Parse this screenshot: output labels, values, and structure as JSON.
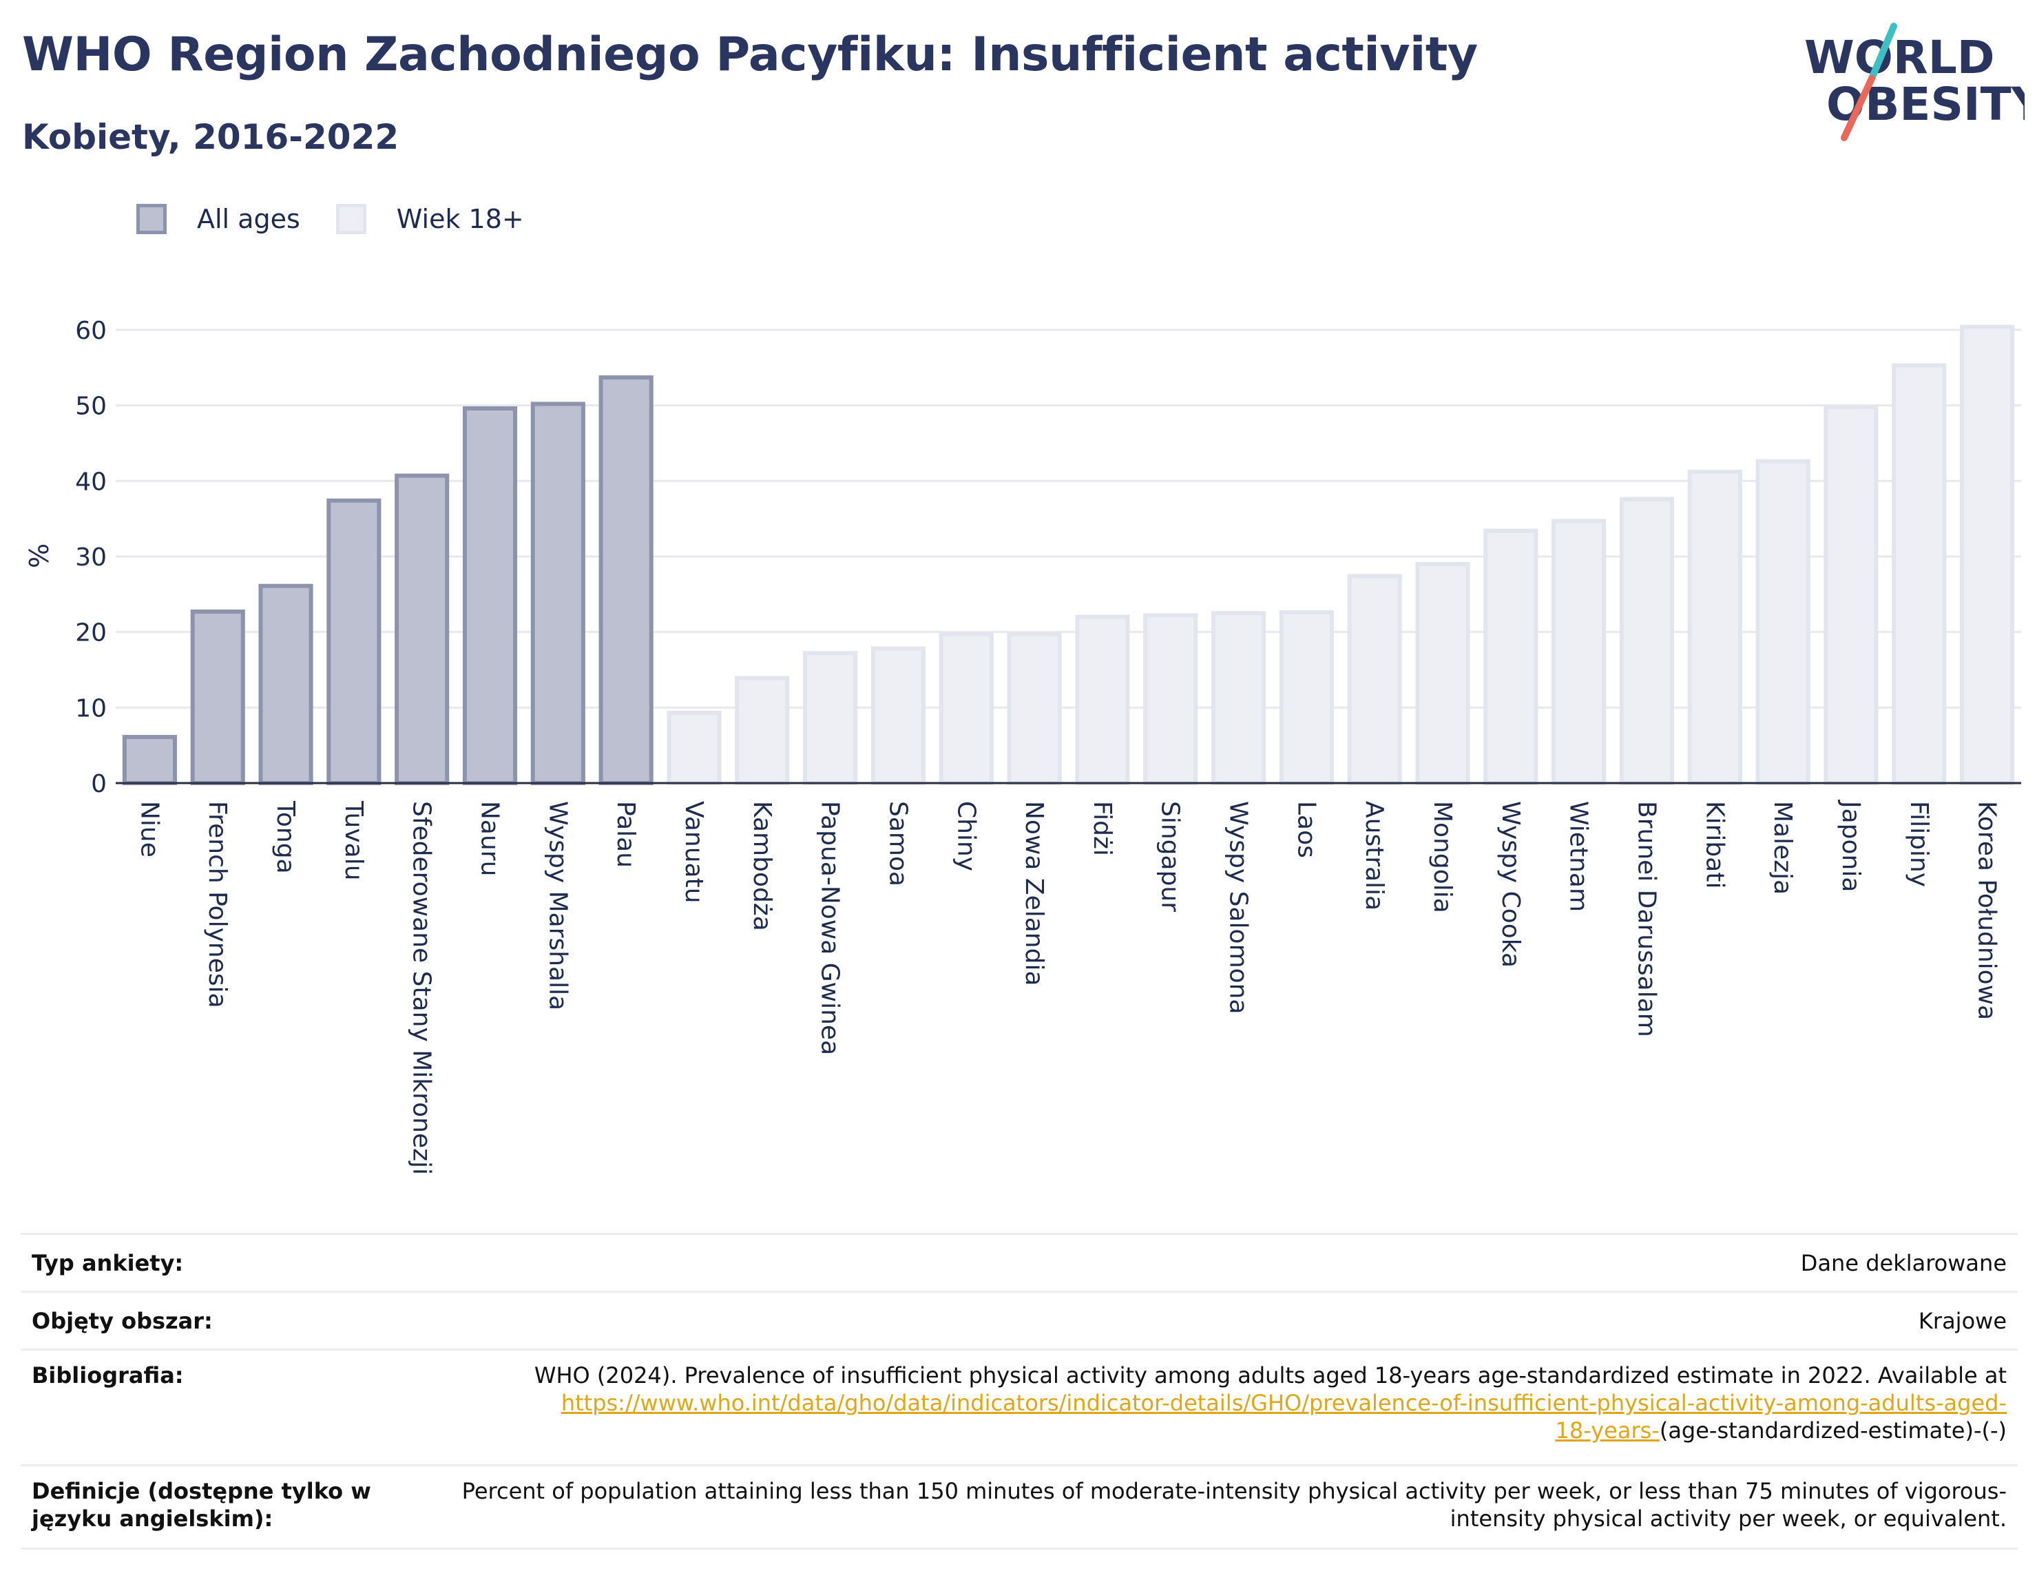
{
  "header": {
    "title": "WHO Region Zachodniego Pacyfiku: Insufficient activity",
    "subtitle": "Kobiety, 2016-2022"
  },
  "logo": {
    "line1": "WORLD",
    "line2": "OBESITY",
    "accent_colors": [
      "#3dbfc3",
      "#e8685a"
    ]
  },
  "legend": {
    "all_ages": "All ages",
    "adult": "Wiek 18+"
  },
  "chart_data": {
    "type": "bar",
    "ylabel": "%",
    "xlabel": "",
    "ylim": [
      0,
      62
    ],
    "yticks": [
      0,
      10,
      20,
      30,
      40,
      50,
      60
    ],
    "grid": true,
    "legend_position": "top-left",
    "colors": {
      "All ages": "#bcc0d0",
      "Wiek 18+": "#eeeff4"
    },
    "categories": [
      "Niue",
      "French Polynesia",
      "Tonga",
      "Tuvalu",
      "Sfederowane Stany Mikronezji",
      "Nauru",
      "Wyspy Marshalla",
      "Palau",
      "Vanuatu",
      "Kambodża",
      "Papua-Nowa Gwinea",
      "Samoa",
      "Chiny",
      "Nowa Zelandia",
      "Fidżi",
      "Singapur",
      "Wyspy Salomona",
      "Laos",
      "Australia",
      "Mongolia",
      "Wyspy Cooka",
      "Wietnam",
      "Brunei Darussalam",
      "Kiribati",
      "Malezja",
      "Japonia",
      "Filipiny",
      "Korea Południowa"
    ],
    "groups": [
      "All ages",
      "All ages",
      "All ages",
      "All ages",
      "All ages",
      "All ages",
      "All ages",
      "All ages",
      "Wiek 18+",
      "Wiek 18+",
      "Wiek 18+",
      "Wiek 18+",
      "Wiek 18+",
      "Wiek 18+",
      "Wiek 18+",
      "Wiek 18+",
      "Wiek 18+",
      "Wiek 18+",
      "Wiek 18+",
      "Wiek 18+",
      "Wiek 18+",
      "Wiek 18+",
      "Wiek 18+",
      "Wiek 18+",
      "Wiek 18+",
      "Wiek 18+",
      "Wiek 18+",
      "Wiek 18+"
    ],
    "values": [
      6.1,
      22.7,
      26.1,
      37.4,
      40.7,
      49.6,
      50.2,
      53.7,
      9.3,
      13.9,
      17.2,
      17.8,
      19.7,
      19.7,
      22.0,
      22.2,
      22.5,
      22.6,
      27.4,
      29.0,
      33.4,
      34.7,
      37.6,
      41.2,
      42.6,
      49.8,
      55.3,
      60.4
    ]
  },
  "info": {
    "survey_label": "Typ ankiety:",
    "survey_value": "Dane deklarowane",
    "area_label": "Objęty obszar:",
    "area_value": "Krajowe",
    "bib_label": "Bibliografia:",
    "bib_text": "WHO (2024). Prevalence of insufficient physical activity among adults aged 18-years age-standardized estimate in 2022. Available at",
    "bib_link_1": "https://www.who.int/data/gho/data/indicators/indicator-details/GHO/prevalence-of-insufficient-physical-activity-among-adults-aged-",
    "bib_link_2": "18-years-",
    "bib_tail": "(age-standardized-estimate)-(-)",
    "def_label": "Definicje (dostępne tylko w języku angielskim):",
    "def_value": "Percent of population attaining less than 150 minutes of moderate-intensity physical activity per week, or less than 75 minutes of vigorous-intensity physical activity per week, or equivalent."
  }
}
